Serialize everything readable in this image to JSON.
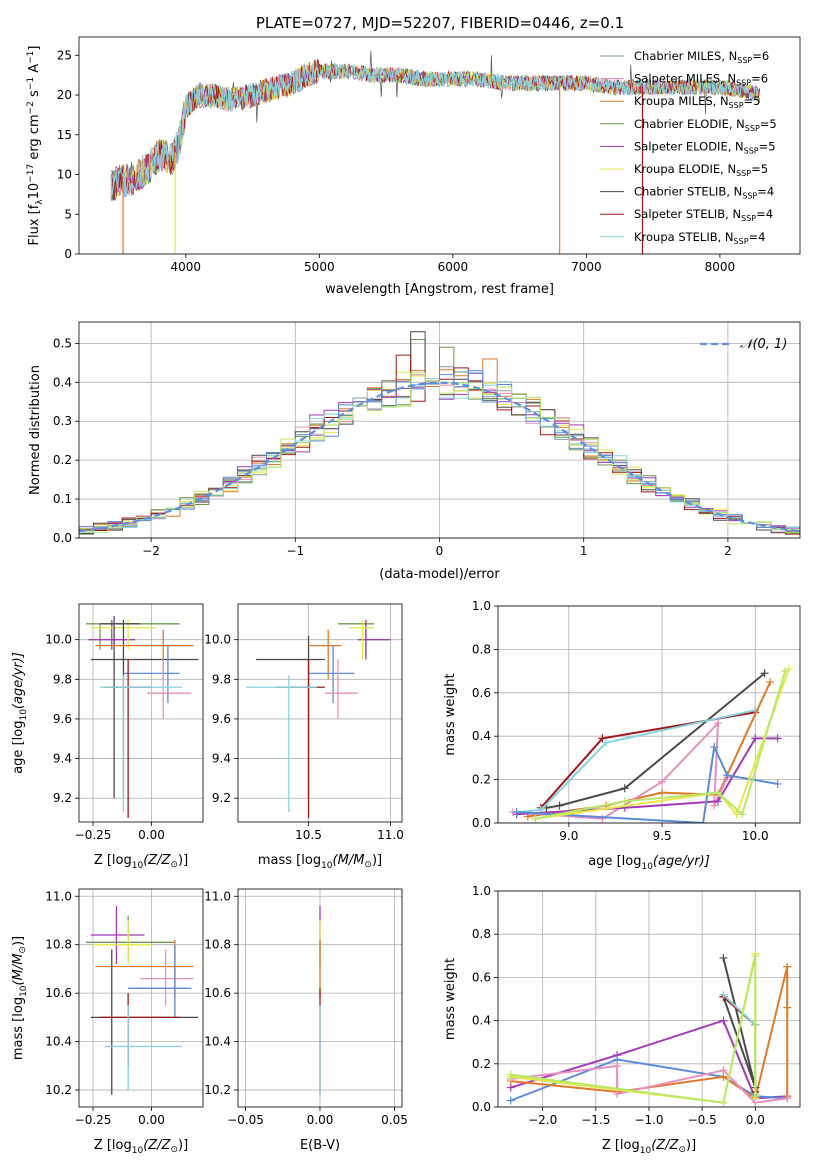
{
  "figure_title": "PLATE=0727, MJD=52207, FIBERID=0446, z=0.1",
  "colors": {
    "Chabrier MILES": "#7fa0a8",
    "Salpeter MILES": "#e88fbd",
    "Kroupa MILES": "#e07a28",
    "Chabrier ELODIE": "#6b9a4f",
    "Salpeter ELODIE": "#a43ab8",
    "Kroupa ELODIE": "#e6e84a",
    "Chabrier STELIB": "#4a4a4a",
    "Salpeter STELIB": "#a01818",
    "Kroupa STELIB": "#86d4e0",
    "blue": "#5b8bd6",
    "lime": "#b8e86a",
    "normal_curve": "#5f8fe0"
  },
  "chart_data": [
    {
      "id": "spectrum",
      "type": "line",
      "title": "",
      "xlabel": "wavelength [Angstrom, rest frame]",
      "ylabel_main": "Flux [f",
      "ylabel_sub": "λ",
      "ylabel_mid": "10",
      "ylabel_sup1": "−17",
      "ylabel_rest1": " erg cm",
      "ylabel_sup2": "−2",
      "ylabel_rest2": " s",
      "ylabel_sup3": "−1",
      "ylabel_rest3": " A",
      "ylabel_sup4": "−1",
      "ylabel_end": "]",
      "xlim": [
        3200,
        8600
      ],
      "ylim": [
        0,
        27.3
      ],
      "xticks": [
        4000,
        5000,
        6000,
        7000,
        8000
      ],
      "yticks": [
        0,
        5,
        10,
        15,
        20,
        25
      ],
      "grid": false,
      "legend_position": "top-right",
      "spectrum_anchors": {
        "x": [
          3420,
          3500,
          3600,
          3700,
          3800,
          3900,
          3950,
          4000,
          4100,
          4200,
          4300,
          4400,
          4500,
          4600,
          4700,
          4800,
          4900,
          5000,
          5200,
          5400,
          5600,
          5800,
          6000,
          6200,
          6400,
          6600,
          6800,
          7000,
          7200,
          7400,
          7600,
          7800,
          8000,
          8200,
          8300
        ],
        "y": [
          8.5,
          9.0,
          9.5,
          10.5,
          12.5,
          12.0,
          14.0,
          18.5,
          20.0,
          20.0,
          19.5,
          19.5,
          20.0,
          20.5,
          21.0,
          21.5,
          22.5,
          23.0,
          23.0,
          22.5,
          22.5,
          22.0,
          22.0,
          22.0,
          21.5,
          21.5,
          21.5,
          21.5,
          21.0,
          21.0,
          21.0,
          21.0,
          21.0,
          20.5,
          20.0
        ]
      },
      "dips": [
        {
          "x": 3530,
          "color": "#e07a28"
        },
        {
          "x": 3920,
          "color": "#e6e84a"
        },
        {
          "x": 6800,
          "color": "#e07a28"
        },
        {
          "x": 7420,
          "color": "#a01818"
        }
      ],
      "series": [
        {
          "name": "Chabrier MILES, N",
          "sub": "SSP",
          "suffix": "=6"
        },
        {
          "name": "Salpeter MILES, N",
          "sub": "SSP",
          "suffix": "=6"
        },
        {
          "name": "Kroupa MILES, N",
          "sub": "SSP",
          "suffix": "=5"
        },
        {
          "name": "Chabrier ELODIE, N",
          "sub": "SSP",
          "suffix": "=5"
        },
        {
          "name": "Salpeter ELODIE, N",
          "sub": "SSP",
          "suffix": "=5"
        },
        {
          "name": "Kroupa ELODIE, N",
          "sub": "SSP",
          "suffix": "=5"
        },
        {
          "name": "Chabrier STELIB, N",
          "sub": "SSP",
          "suffix": "=4"
        },
        {
          "name": "Salpeter STELIB, N",
          "sub": "SSP",
          "suffix": "=4"
        },
        {
          "name": "Kroupa STELIB, N",
          "sub": "SSP",
          "suffix": "=4"
        }
      ]
    },
    {
      "id": "residuals",
      "type": "histogram",
      "xlabel": "(data-model)/error",
      "ylabel": "Normed distribution",
      "xlim": [
        -2.5,
        2.5
      ],
      "ylim": [
        0,
        0.555
      ],
      "xticks": [
        -2,
        -1,
        0,
        1,
        2
      ],
      "yticks": [
        0.0,
        0.1,
        0.2,
        0.3,
        0.4,
        0.5
      ],
      "grid": true,
      "legend_position": "top-right",
      "legend_label": "𝒩(0, 1)",
      "bin_width": 0.1,
      "peak_bins": [
        {
          "x": -0.2,
          "y": 0.53,
          "color": "#4a4a4a"
        },
        {
          "x": -0.2,
          "y": 0.51,
          "color": "#6b9a4f"
        },
        {
          "x": -0.3,
          "y": 0.47,
          "color": "#a01818"
        },
        {
          "x": 0.0,
          "y": 0.49,
          "color": "#6b9a4f"
        },
        {
          "x": 0.3,
          "y": 0.46,
          "color": "#e07a28"
        },
        {
          "x": 0.2,
          "y": 0.43,
          "color": "#5b8bd6"
        }
      ]
    },
    {
      "id": "z-age",
      "type": "errorbar",
      "xlabel": "Z [log",
      "xlabel_sub": "10",
      "xlabel_end": "(Z/Z",
      "xlabel_sun": "⊙",
      "xlabel_close": ")]",
      "ylabel": "age  [log",
      "ylabel_sub": "10",
      "ylabel_end": "(age/yr)]",
      "xlim": [
        -0.31,
        0.22
      ],
      "ylim": [
        9.08,
        10.18
      ],
      "xticks": [
        -0.25,
        0.0
      ],
      "yticks": [
        9.2,
        9.4,
        9.6,
        9.8,
        10.0
      ],
      "grid": true,
      "points": [
        {
          "x": -0.22,
          "y": 10.08,
          "xl": -0.28,
          "xh": 0.12,
          "yl": 9.95,
          "yh": 10.08,
          "color": "#6b9a4f"
        },
        {
          "x": -0.17,
          "y": 10.0,
          "xl": -0.27,
          "xh": -0.07,
          "yl": 9.95,
          "yh": 10.1,
          "color": "#a43ab8"
        },
        {
          "x": -0.1,
          "y": 10.06,
          "xl": -0.26,
          "xh": 0.02,
          "yl": 9.95,
          "yh": 10.1,
          "color": "#e6e84a"
        },
        {
          "x": -0.16,
          "y": 10.08,
          "xl": -0.22,
          "xh": -0.05,
          "yl": 9.2,
          "yh": 10.12,
          "color": "#4a4a4a"
        },
        {
          "x": -0.12,
          "y": 9.9,
          "xl": -0.26,
          "xh": 0.2,
          "yl": 9.2,
          "yh": 10.1,
          "color": "#4a4a4a"
        },
        {
          "x": 0.05,
          "y": 9.97,
          "xl": -0.24,
          "xh": 0.18,
          "yl": 9.8,
          "yh": 10.05,
          "color": "#e07a28"
        },
        {
          "x": 0.07,
          "y": 9.83,
          "xl": -0.12,
          "xh": 0.12,
          "yl": 9.68,
          "yh": 9.97,
          "color": "#5b8bd6"
        },
        {
          "x": 0.05,
          "y": 9.73,
          "xl": -0.02,
          "xh": 0.17,
          "yl": 9.6,
          "yh": 9.9,
          "color": "#e88fbd"
        },
        {
          "x": -0.1,
          "y": 9.76,
          "xl": -0.2,
          "xh": 0.0,
          "yl": 9.1,
          "yh": 9.9,
          "color": "#a01818"
        },
        {
          "x": -0.12,
          "y": 9.76,
          "xl": -0.22,
          "xh": 0.13,
          "yl": 9.13,
          "yh": 9.82,
          "color": "#86d4e0"
        }
      ]
    },
    {
      "id": "mass-age",
      "type": "errorbar",
      "xlabel": "mass [log",
      "xlabel_sub": "10",
      "xlabel_end": "(M/M",
      "xlabel_sun": "⊙",
      "xlabel_close": ")]",
      "ylabel": "",
      "xlim": [
        10.07,
        11.07
      ],
      "ylim": [
        9.08,
        10.18
      ],
      "xticks": [
        10.5,
        11.0
      ],
      "yticks": [
        9.2,
        9.4,
        9.6,
        9.8,
        10.0
      ],
      "grid": true,
      "points": [
        {
          "x": 10.85,
          "y": 10.08,
          "xl": 10.68,
          "xh": 10.9,
          "yl": 9.92,
          "yh": 10.1,
          "color": "#6b9a4f"
        },
        {
          "x": 10.85,
          "y": 10.0,
          "xl": 10.8,
          "xh": 11.0,
          "yl": 9.9,
          "yh": 10.1,
          "color": "#a43ab8"
        },
        {
          "x": 10.83,
          "y": 10.06,
          "xl": 10.75,
          "xh": 10.9,
          "yl": 9.9,
          "yh": 10.1,
          "color": "#e6e84a"
        },
        {
          "x": 10.5,
          "y": 9.9,
          "xl": 10.18,
          "xh": 10.6,
          "yl": 9.2,
          "yh": 10.02,
          "color": "#4a4a4a"
        },
        {
          "x": 10.62,
          "y": 9.97,
          "xl": 10.5,
          "xh": 10.7,
          "yl": 9.8,
          "yh": 10.05,
          "color": "#e07a28"
        },
        {
          "x": 10.65,
          "y": 9.83,
          "xl": 10.5,
          "xh": 10.78,
          "yl": 9.68,
          "yh": 9.97,
          "color": "#5b8bd6"
        },
        {
          "x": 10.68,
          "y": 9.73,
          "xl": 10.6,
          "xh": 10.8,
          "yl": 9.6,
          "yh": 9.9,
          "color": "#e88fbd"
        },
        {
          "x": 10.5,
          "y": 9.76,
          "xl": 10.3,
          "xh": 10.6,
          "yl": 9.1,
          "yh": 9.9,
          "color": "#a01818"
        },
        {
          "x": 10.38,
          "y": 9.76,
          "xl": 10.12,
          "xh": 10.55,
          "yl": 9.13,
          "yh": 9.82,
          "color": "#86d4e0"
        }
      ]
    },
    {
      "id": "age-weight",
      "type": "line",
      "xlabel": "age  [log",
      "xlabel_sub": "10",
      "xlabel_end": "(age/yr)]",
      "ylabel": "mass weight",
      "xlim": [
        8.62,
        10.24
      ],
      "ylim": [
        0,
        1.0
      ],
      "xticks": [
        9.0,
        9.5,
        10.0
      ],
      "yticks": [
        0.0,
        0.2,
        0.4,
        0.6,
        0.8,
        1.0
      ],
      "grid": true,
      "series": [
        {
          "color": "#4a4a4a",
          "x": [
            8.88,
            8.95,
            9.3,
            10.05
          ],
          "y": [
            0.07,
            0.08,
            0.16,
            0.69
          ]
        },
        {
          "color": "#a01818",
          "x": [
            8.85,
            9.18,
            10.0
          ],
          "y": [
            0.07,
            0.39,
            0.51
          ]
        },
        {
          "color": "#86d4e0",
          "x": [
            8.72,
            8.85,
            9.2,
            10.0
          ],
          "y": [
            0.05,
            0.06,
            0.37,
            0.52
          ]
        },
        {
          "color": "#e07a28",
          "x": [
            8.78,
            9.2,
            9.5,
            9.8,
            10.08
          ],
          "y": [
            0.03,
            0.08,
            0.14,
            0.13,
            0.65
          ]
        },
        {
          "color": "#e88fbd",
          "x": [
            8.7,
            9.18,
            9.5,
            9.8,
            9.78,
            9.85
          ],
          "y": [
            0.05,
            0.02,
            0.19,
            0.46,
            0.08,
            0.21
          ]
        },
        {
          "color": "#a43ab8",
          "x": [
            8.72,
            9.3,
            9.8,
            10.0,
            10.12
          ],
          "y": [
            0.04,
            0.07,
            0.1,
            0.39,
            0.39
          ]
        },
        {
          "color": "#5b8bd6",
          "x": [
            8.72,
            9.72,
            9.78,
            9.85,
            10.12
          ],
          "y": [
            0.05,
            0.0,
            0.35,
            0.22,
            0.18
          ]
        },
        {
          "color": "#e6e84a",
          "x": [
            8.82,
            9.8,
            9.9,
            10.18
          ],
          "y": [
            0.02,
            0.14,
            0.04,
            0.71
          ]
        },
        {
          "color": "#b8e86a",
          "x": [
            8.82,
            9.3,
            9.8,
            9.93,
            10.16
          ],
          "y": [
            0.02,
            0.1,
            0.14,
            0.04,
            0.7
          ]
        }
      ]
    },
    {
      "id": "z-mass",
      "type": "errorbar",
      "xlabel": "Z [log",
      "xlabel_sub": "10",
      "xlabel_end": "(Z/Z",
      "xlabel_sun": "⊙",
      "xlabel_close": ")]",
      "ylabel": "mass [log",
      "ylabel_sub": "10",
      "ylabel_end": "(M/M",
      "ylabel_sun": "⊙",
      "ylabel_close": ")]",
      "xlim": [
        -0.31,
        0.22
      ],
      "ylim": [
        10.13,
        11.03
      ],
      "xticks": [
        -0.25,
        0.0
      ],
      "yticks": [
        10.2,
        10.4,
        10.6,
        10.8,
        11.0
      ],
      "grid": true,
      "points": [
        {
          "x": -0.15,
          "y": 10.84,
          "xl": -0.26,
          "xh": -0.03,
          "yl": 10.72,
          "yh": 10.96,
          "color": "#a43ab8"
        },
        {
          "x": -0.1,
          "y": 10.81,
          "xl": -0.28,
          "xh": 0.1,
          "yl": 10.73,
          "yh": 10.92,
          "color": "#6b9a4f"
        },
        {
          "x": -0.1,
          "y": 10.8,
          "xl": -0.25,
          "xh": 0.0,
          "yl": 10.72,
          "yh": 10.9,
          "color": "#e6e84a"
        },
        {
          "x": 0.1,
          "y": 10.71,
          "xl": -0.24,
          "xh": 0.18,
          "yl": 10.58,
          "yh": 10.82,
          "color": "#e07a28"
        },
        {
          "x": 0.06,
          "y": 10.66,
          "xl": -0.05,
          "xh": 0.18,
          "yl": 10.55,
          "yh": 10.78,
          "color": "#e88fbd"
        },
        {
          "x": 0.1,
          "y": 10.62,
          "xl": -0.1,
          "xh": 0.17,
          "yl": 10.5,
          "yh": 10.8,
          "color": "#5b8bd6"
        },
        {
          "x": -0.17,
          "y": 10.5,
          "xl": -0.26,
          "xh": 0.2,
          "yl": 10.18,
          "yh": 10.78,
          "color": "#4a4a4a"
        },
        {
          "x": -0.1,
          "y": 10.5,
          "xl": -0.22,
          "xh": 0.12,
          "yl": 10.3,
          "yh": 10.6,
          "color": "#a01818"
        },
        {
          "x": -0.1,
          "y": 10.38,
          "xl": -0.2,
          "xh": 0.13,
          "yl": 10.2,
          "yh": 10.55,
          "color": "#86d4e0"
        }
      ]
    },
    {
      "id": "ebv",
      "type": "errorbar",
      "xlabel": "E(B-V)",
      "ylabel": "",
      "xlim": [
        -0.055,
        0.055
      ],
      "ylim": [
        10.13,
        11.03
      ],
      "xticks": [
        -0.05,
        0.0,
        0.05
      ],
      "yticks": [
        10.2,
        10.4,
        10.6,
        10.8,
        11.0
      ],
      "grid": true,
      "points": [
        {
          "x": 0.0,
          "y": 10.84,
          "xl": 0.0,
          "xh": 0.0,
          "yl": 10.72,
          "yh": 10.96,
          "color": "#a43ab8"
        },
        {
          "x": 0.0,
          "y": 10.8,
          "xl": 0.0,
          "xh": 0.0,
          "yl": 10.7,
          "yh": 10.9,
          "color": "#e6e84a"
        },
        {
          "x": 0.0,
          "y": 10.71,
          "xl": 0.0,
          "xh": 0.0,
          "yl": 10.58,
          "yh": 10.82,
          "color": "#e07a28"
        },
        {
          "x": 0.0,
          "y": 10.5,
          "xl": 0.0,
          "xh": 0.0,
          "yl": 10.18,
          "yh": 10.62,
          "color": "#a01818"
        },
        {
          "x": 0.0,
          "y": 10.38,
          "xl": 0.0,
          "xh": 0.0,
          "yl": 10.18,
          "yh": 10.55,
          "color": "#86d4e0"
        }
      ]
    },
    {
      "id": "z-weight",
      "type": "line",
      "xlabel": "Z [log",
      "xlabel_sub": "10",
      "xlabel_end": "(Z/Z",
      "xlabel_sun": "⊙",
      "xlabel_close": ")]",
      "ylabel": "mass weight",
      "xlim": [
        -2.42,
        0.42
      ],
      "ylim": [
        0,
        1.0
      ],
      "xticks": [
        -2.0,
        -1.5,
        -1.0,
        -0.5,
        0.0
      ],
      "yticks": [
        0.0,
        0.2,
        0.4,
        0.6,
        0.8,
        1.0
      ],
      "grid": true,
      "series": [
        {
          "color": "#a43ab8",
          "x": [
            -2.3,
            -1.3,
            -0.3,
            0.0,
            0.3
          ],
          "y": [
            0.09,
            0.24,
            0.4,
            0.04,
            0.05
          ]
        },
        {
          "color": "#5b8bd6",
          "x": [
            -2.3,
            -1.3,
            -0.3,
            0.0,
            0.3
          ],
          "y": [
            0.03,
            0.22,
            0.14,
            0.05,
            0.04
          ]
        },
        {
          "color": "#e07a28",
          "x": [
            -2.3,
            -1.3,
            -0.3,
            0.0,
            0.3,
            0.3,
            0.3
          ],
          "y": [
            0.12,
            0.07,
            0.14,
            0.04,
            0.65,
            0.46,
            0.05
          ]
        },
        {
          "color": "#e88fbd",
          "x": [
            -2.3,
            -1.3,
            -1.3,
            -0.3,
            0.0,
            0.3
          ],
          "y": [
            0.13,
            0.19,
            0.06,
            0.17,
            0.02,
            0.04
          ]
        },
        {
          "color": "#4a4a4a",
          "x": [
            -0.3,
            0.0,
            -0.3,
            0.0
          ],
          "y": [
            0.69,
            0.09,
            0.51,
            0.38
          ]
        },
        {
          "color": "#a01818",
          "x": [
            -0.3,
            0.0,
            0.0
          ],
          "y": [
            0.51,
            0.38,
            0.07
          ]
        },
        {
          "color": "#86d4e0",
          "x": [
            -0.3,
            0.0,
            0.0
          ],
          "y": [
            0.52,
            0.38,
            0.06
          ]
        },
        {
          "color": "#e6e84a",
          "x": [
            -2.3,
            -0.3,
            0.0,
            0.0
          ],
          "y": [
            0.14,
            0.02,
            0.71,
            0.04
          ]
        },
        {
          "color": "#b8e86a",
          "x": [
            -2.3,
            -0.3,
            0.0,
            0.0
          ],
          "y": [
            0.15,
            0.02,
            0.7,
            0.05
          ]
        }
      ]
    }
  ]
}
